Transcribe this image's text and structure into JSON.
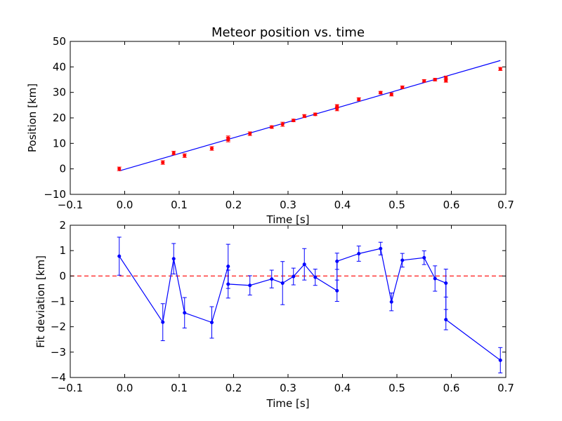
{
  "chart_data": [
    {
      "type": "scatter",
      "title": "Meteor position vs. time",
      "xlabel": "Time [s]",
      "ylabel": "Position [km]",
      "xlim": [
        -0.1,
        0.7
      ],
      "ylim": [
        -10,
        50
      ],
      "xticks": [
        -0.1,
        0.0,
        0.1,
        0.2,
        0.3,
        0.4,
        0.5,
        0.6,
        0.7
      ],
      "xtick_labels": [
        "−0.1",
        "0.0",
        "0.1",
        "0.2",
        "0.3",
        "0.4",
        "0.5",
        "0.6",
        "0.7"
      ],
      "yticks": [
        -10,
        0,
        10,
        20,
        30,
        40,
        50
      ],
      "ytick_labels": [
        "−10",
        "0",
        "10",
        "20",
        "30",
        "40",
        "50"
      ],
      "grid": false,
      "point_color": "#ff0000",
      "fit_color": "#0000ff",
      "points": [
        {
          "x": -0.01,
          "y": 0.0,
          "err": 0.7
        },
        {
          "x": 0.07,
          "y": 2.5,
          "err": 0.7
        },
        {
          "x": 0.09,
          "y": 6.2,
          "err": 0.7
        },
        {
          "x": 0.11,
          "y": 5.2,
          "err": 0.7
        },
        {
          "x": 0.16,
          "y": 8.0,
          "err": 0.7
        },
        {
          "x": 0.19,
          "y": 11.5,
          "err": 0.9
        },
        {
          "x": 0.19,
          "y": 12.0,
          "err": 0.9
        },
        {
          "x": 0.23,
          "y": 13.8,
          "err": 0.7
        },
        {
          "x": 0.27,
          "y": 16.4,
          "err": 0.5
        },
        {
          "x": 0.29,
          "y": 17.5,
          "err": 0.8
        },
        {
          "x": 0.31,
          "y": 19.0,
          "err": 0.5
        },
        {
          "x": 0.33,
          "y": 20.7,
          "err": 0.6
        },
        {
          "x": 0.35,
          "y": 21.4,
          "err": 0.5
        },
        {
          "x": 0.39,
          "y": 23.5,
          "err": 0.7
        },
        {
          "x": 0.39,
          "y": 24.6,
          "err": 0.6
        },
        {
          "x": 0.43,
          "y": 27.3,
          "err": 0.6
        },
        {
          "x": 0.47,
          "y": 29.9,
          "err": 0.5
        },
        {
          "x": 0.49,
          "y": 29.2,
          "err": 0.6
        },
        {
          "x": 0.51,
          "y": 32.0,
          "err": 0.5
        },
        {
          "x": 0.55,
          "y": 34.5,
          "err": 0.5
        },
        {
          "x": 0.57,
          "y": 35.0,
          "err": 0.5
        },
        {
          "x": 0.59,
          "y": 34.6,
          "err": 0.6
        },
        {
          "x": 0.59,
          "y": 35.8,
          "err": 0.6
        },
        {
          "x": 0.69,
          "y": 39.2,
          "err": 0.6
        }
      ],
      "fit_line": {
        "x": [
          -0.01,
          0.69
        ],
        "y": [
          -0.8,
          42.5
        ]
      }
    },
    {
      "type": "line",
      "title": "",
      "xlabel": "Time [s]",
      "ylabel": "Fit deviation [km]",
      "xlim": [
        -0.1,
        0.7
      ],
      "ylim": [
        -4,
        2
      ],
      "xticks": [
        -0.1,
        0.0,
        0.1,
        0.2,
        0.3,
        0.4,
        0.5,
        0.6,
        0.7
      ],
      "xtick_labels": [
        "−0.1",
        "0.0",
        "0.1",
        "0.2",
        "0.3",
        "0.4",
        "0.5",
        "0.6",
        "0.7"
      ],
      "yticks": [
        -4,
        -3,
        -2,
        -1,
        0,
        1,
        2
      ],
      "ytick_labels": [
        "−4",
        "−3",
        "−2",
        "−1",
        "0",
        "1",
        "2"
      ],
      "grid": false,
      "line_color": "#0000ff",
      "reference_line": {
        "y": 0,
        "color": "#ff0000",
        "style": "dashed"
      },
      "points": [
        {
          "x": -0.01,
          "y": 0.78,
          "err": 0.75
        },
        {
          "x": 0.07,
          "y": -1.82,
          "err": 0.73
        },
        {
          "x": 0.09,
          "y": 0.68,
          "err": 0.6
        },
        {
          "x": 0.11,
          "y": -1.45,
          "err": 0.6
        },
        {
          "x": 0.16,
          "y": -1.83,
          "err": 0.62
        },
        {
          "x": 0.19,
          "y": 0.38,
          "err": 0.87
        },
        {
          "x": 0.19,
          "y": -0.32,
          "err": 0.55
        },
        {
          "x": 0.23,
          "y": -0.37,
          "err": 0.38
        },
        {
          "x": 0.27,
          "y": -0.12,
          "err": 0.35
        },
        {
          "x": 0.29,
          "y": -0.28,
          "err": 0.85
        },
        {
          "x": 0.31,
          "y": -0.02,
          "err": 0.33
        },
        {
          "x": 0.33,
          "y": 0.46,
          "err": 0.62
        },
        {
          "x": 0.35,
          "y": -0.05,
          "err": 0.32
        },
        {
          "x": 0.39,
          "y": -0.58,
          "err": 0.42
        },
        {
          "x": 0.39,
          "y": 0.58,
          "err": 0.32
        },
        {
          "x": 0.43,
          "y": 0.88,
          "err": 0.3
        },
        {
          "x": 0.47,
          "y": 1.08,
          "err": 0.25
        },
        {
          "x": 0.49,
          "y": -1.02,
          "err": 0.35
        },
        {
          "x": 0.51,
          "y": 0.62,
          "err": 0.27
        },
        {
          "x": 0.55,
          "y": 0.72,
          "err": 0.27
        },
        {
          "x": 0.57,
          "y": -0.1,
          "err": 0.5
        },
        {
          "x": 0.59,
          "y": -0.28,
          "err": 0.55
        },
        {
          "x": 0.59,
          "y": -1.72,
          "err": 0.4
        },
        {
          "x": 0.69,
          "y": -3.32,
          "err": 0.5
        }
      ]
    }
  ]
}
